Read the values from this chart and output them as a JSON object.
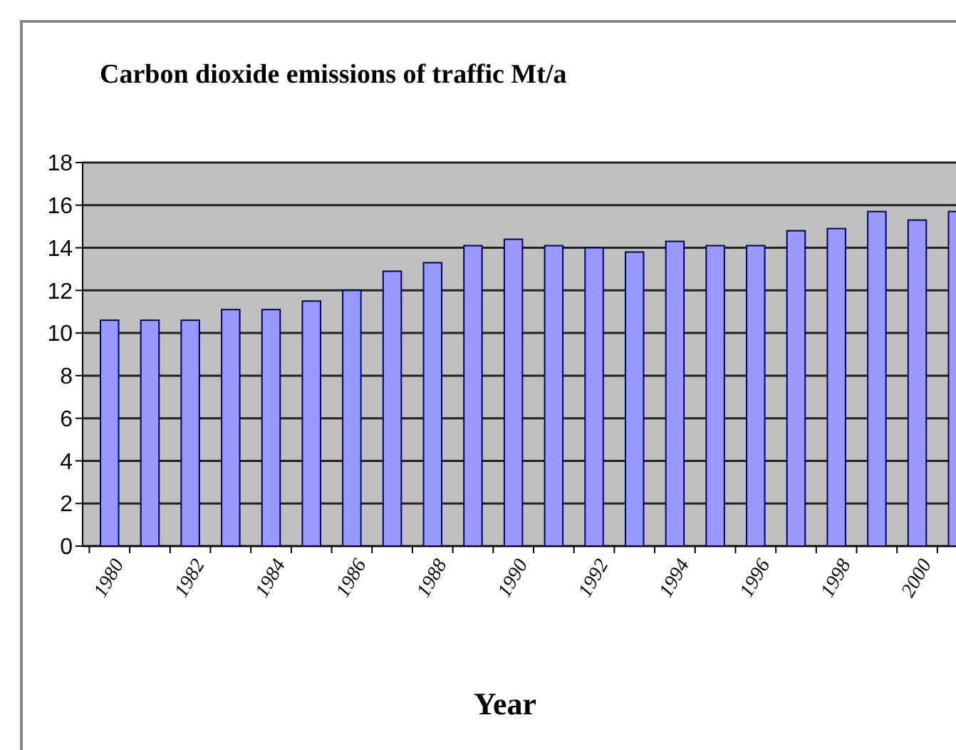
{
  "chart_data": {
    "type": "bar",
    "title": "Carbon dioxide emissions of traffic Mt/a",
    "xlabel": "Year",
    "categories": [
      "1980",
      null,
      "1982",
      null,
      "1984",
      null,
      "1986",
      null,
      "1988",
      null,
      "1990",
      null,
      "1992",
      null,
      "1994",
      null,
      "1996",
      null,
      "1998",
      null,
      "2000",
      null
    ],
    "values": [
      10.6,
      10.6,
      10.6,
      11.1,
      11.1,
      11.5,
      12.0,
      12.9,
      13.3,
      14.1,
      14.4,
      14.1,
      14.0,
      13.8,
      14.3,
      14.1,
      14.1,
      14.8,
      14.9,
      15.7,
      15.3,
      15.7
    ],
    "color": "#9999ff",
    "ylim": [
      0,
      18
    ],
    "yticks": [
      0,
      2,
      4,
      6,
      8,
      10,
      12,
      14,
      16,
      18
    ],
    "grid": "y"
  }
}
